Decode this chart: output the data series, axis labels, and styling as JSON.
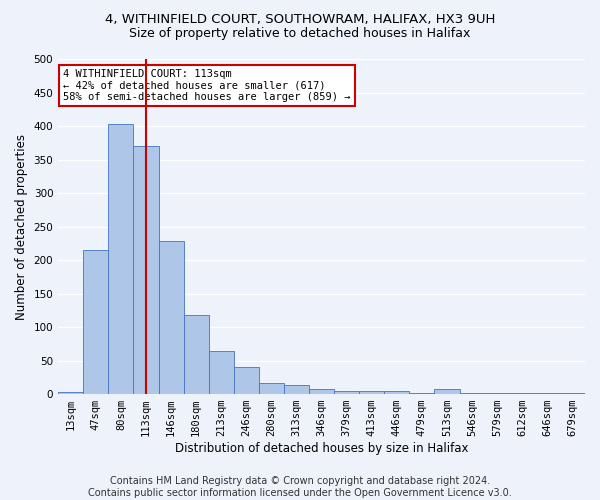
{
  "title1": "4, WITHINFIELD COURT, SOUTHOWRAM, HALIFAX, HX3 9UH",
  "title2": "Size of property relative to detached houses in Halifax",
  "xlabel": "Distribution of detached houses by size in Halifax",
  "ylabel": "Number of detached properties",
  "categories": [
    "13sqm",
    "47sqm",
    "80sqm",
    "113sqm",
    "146sqm",
    "180sqm",
    "213sqm",
    "246sqm",
    "280sqm",
    "313sqm",
    "346sqm",
    "379sqm",
    "413sqm",
    "446sqm",
    "479sqm",
    "513sqm",
    "546sqm",
    "579sqm",
    "612sqm",
    "646sqm",
    "679sqm"
  ],
  "values": [
    3,
    215,
    403,
    370,
    228,
    118,
    65,
    40,
    17,
    13,
    7,
    5,
    5,
    5,
    1,
    8,
    1,
    1,
    1,
    1,
    2
  ],
  "bar_color": "#aec6e8",
  "bar_edge_color": "#4472c4",
  "vline_x_idx": 3,
  "vline_color": "#cc0000",
  "annotation_text": "4 WITHINFIELD COURT: 113sqm\n← 42% of detached houses are smaller (617)\n58% of semi-detached houses are larger (859) →",
  "annotation_box_color": "#ffffff",
  "annotation_box_edge": "#cc0000",
  "footer1": "Contains HM Land Registry data © Crown copyright and database right 2024.",
  "footer2": "Contains public sector information licensed under the Open Government Licence v3.0.",
  "ylim": [
    0,
    500
  ],
  "yticks": [
    0,
    50,
    100,
    150,
    200,
    250,
    300,
    350,
    400,
    450,
    500
  ],
  "background_color": "#eef2fa",
  "grid_color": "#ffffff",
  "title1_fontsize": 9.5,
  "title2_fontsize": 9,
  "axis_label_fontsize": 8.5,
  "tick_fontsize": 7.5,
  "footer_fontsize": 7
}
